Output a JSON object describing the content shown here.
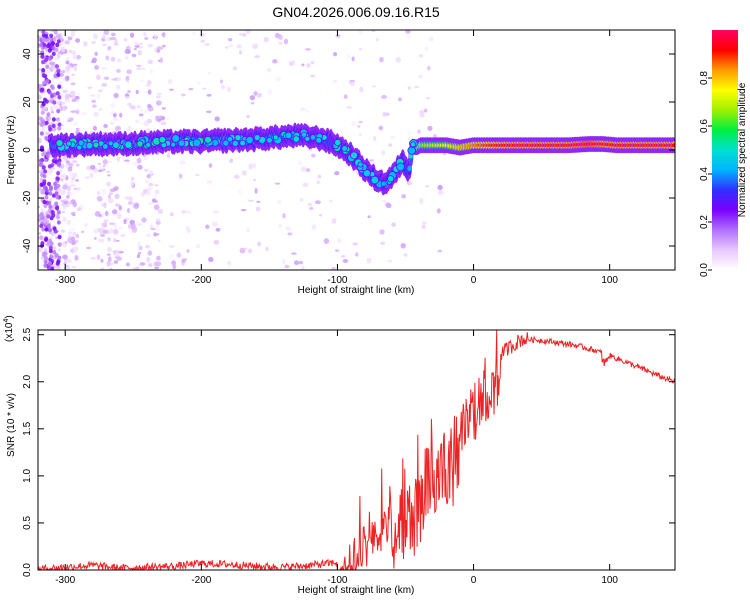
{
  "figure": {
    "title": "GN04.2026.006.09.16.R15"
  },
  "chart_data": [
    {
      "type": "heatmap",
      "xlabel": "Height of straight line (km)",
      "ylabel": "Frequency (Hz)",
      "xlim": [
        -320,
        148
      ],
      "ylim": [
        -50,
        50
      ],
      "xticks": [
        -300,
        -200,
        -100,
        0,
        100
      ],
      "yticks": [
        -40,
        -20,
        0,
        20,
        40
      ],
      "colorbar": {
        "label": "Normalized spectral amplitude",
        "range": [
          0,
          1
        ],
        "ticks": [
          "0.0",
          "0.2",
          "0.4",
          "0.6",
          "0.8"
        ],
        "colors": [
          "#ffffff",
          "#e8c8ff",
          "#b070ff",
          "#7a00ff",
          "#3030ff",
          "#00b4ff",
          "#00e0d0",
          "#00f040",
          "#a0f000",
          "#ffff00",
          "#ff9900",
          "#ff0000",
          "#ff0066"
        ]
      },
      "ridge": {
        "x": [
          -315,
          -300,
          -280,
          -260,
          -240,
          -220,
          -200,
          -180,
          -160,
          -140,
          -130,
          -120,
          -110,
          -100,
          -90,
          -80,
          -72,
          -65,
          -58,
          -52,
          -48,
          -45,
          -40,
          -30,
          -20,
          -10,
          0,
          10,
          20,
          30,
          50,
          70,
          85,
          95,
          105,
          120,
          148
        ],
        "freq_hz": [
          2,
          2,
          2.5,
          2.5,
          3,
          3.5,
          3.5,
          4,
          4.5,
          5.5,
          6,
          5.5,
          4.5,
          2,
          -2,
          -8,
          -12,
          -14,
          -10,
          -4,
          -10,
          2,
          2,
          2,
          2,
          1,
          2,
          2,
          2,
          2,
          2,
          2,
          2.5,
          2.5,
          2,
          2,
          2
        ],
        "amplitude": [
          0.35,
          0.4,
          0.4,
          0.4,
          0.4,
          0.4,
          0.4,
          0.4,
          0.4,
          0.4,
          0.4,
          0.38,
          0.36,
          0.35,
          0.35,
          0.35,
          0.35,
          0.35,
          0.35,
          0.35,
          0.35,
          0.6,
          0.65,
          0.7,
          0.75,
          0.8,
          0.85,
          0.9,
          0.92,
          0.95,
          0.95,
          0.95,
          1.0,
          0.95,
          0.95,
          0.95,
          0.95
        ]
      }
    },
    {
      "type": "line",
      "xlabel": "Height of straight line (km)",
      "ylabel": "SNR (10 * v/v)",
      "y_multiplier_label": "(x10",
      "y_multiplier_exp": "4",
      "y_multiplier_close": ")",
      "xlim": [
        -320,
        148
      ],
      "ylim": [
        0,
        2.55
      ],
      "xticks": [
        -300,
        -200,
        -100,
        0,
        100
      ],
      "yticks": [
        "0.0",
        "0.5",
        "1.0",
        "1.5",
        "2.0",
        "2.5"
      ],
      "color": "#ee2222",
      "series": [
        {
          "x": [
            -320,
            -300,
            -280,
            -260,
            -240,
            -220,
            -200,
            -180,
            -160,
            -140,
            -120,
            -100,
            -95,
            -90,
            -85,
            -80,
            -75,
            -70,
            -65,
            -60,
            -55,
            -50,
            -45,
            -40,
            -35,
            -30,
            -25,
            -20,
            -15,
            -10,
            -5,
            0,
            5,
            10,
            15,
            20,
            25,
            30,
            35,
            40,
            50,
            60,
            70,
            80,
            90,
            95,
            96,
            100,
            110,
            120,
            130,
            140,
            148
          ],
          "y": [
            0.01,
            0.03,
            0.05,
            0.02,
            0.03,
            0.04,
            0.07,
            0.06,
            0.04,
            0.03,
            0.05,
            0.08,
            0.2,
            0.3,
            0.45,
            0.55,
            0.6,
            0.7,
            0.85,
            0.95,
            0.9,
            1.1,
            1.0,
            1.2,
            1.3,
            1.5,
            1.7,
            1.5,
            1.6,
            1.8,
            1.9,
            2.0,
            2.1,
            2.2,
            2.25,
            2.3,
            2.35,
            2.4,
            2.45,
            2.45,
            2.44,
            2.42,
            2.4,
            2.37,
            2.33,
            2.3,
            2.2,
            2.28,
            2.22,
            2.16,
            2.1,
            2.04,
            2.0
          ]
        }
      ]
    }
  ]
}
